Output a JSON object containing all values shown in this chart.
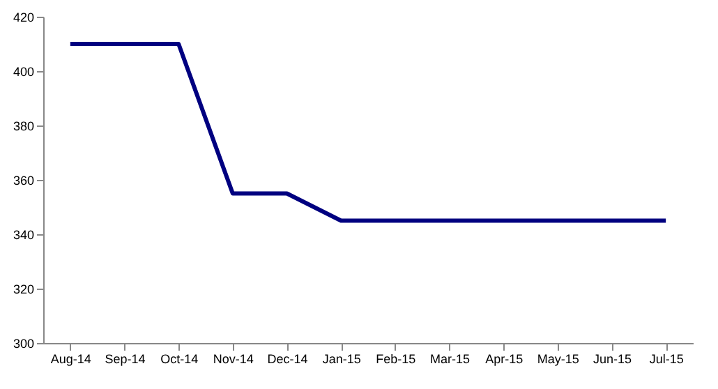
{
  "chart_data": {
    "type": "line",
    "categories": [
      "Aug-14",
      "Sep-14",
      "Oct-14",
      "Nov-14",
      "Dec-14",
      "Jan-15",
      "Feb-15",
      "Mar-15",
      "Apr-15",
      "May-15",
      "Jun-15",
      "Jul-15"
    ],
    "series": [
      {
        "color": "#000080",
        "values": [
          410,
          410,
          410,
          355,
          355,
          345,
          345,
          345,
          345,
          345,
          345,
          345
        ]
      }
    ],
    "ylim": [
      300,
      420
    ],
    "yticks": [
      300,
      320,
      340,
      360,
      380,
      400,
      420
    ],
    "grid": false,
    "legend": false,
    "marker": "none",
    "line_style": "solid"
  }
}
